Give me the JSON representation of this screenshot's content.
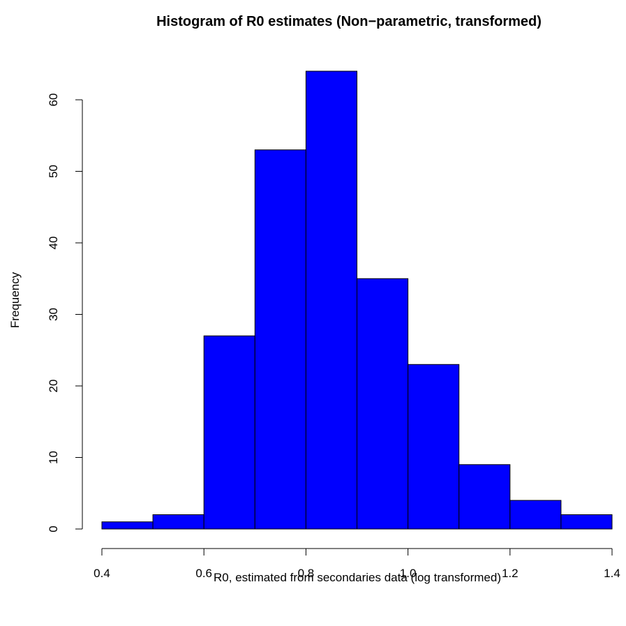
{
  "chart_data": {
    "type": "bar",
    "subtype": "histogram",
    "title": "Histogram of R0 estimates (Non−parametric, transformed)",
    "xlabel": "R0, estimated from secondaries data (log transformed)",
    "ylabel": "Frequency",
    "bins": [
      {
        "x0": 0.4,
        "x1": 0.5,
        "value": 1
      },
      {
        "x0": 0.5,
        "x1": 0.6,
        "value": 2
      },
      {
        "x0": 0.6,
        "x1": 0.7,
        "value": 27
      },
      {
        "x0": 0.7,
        "x1": 0.8,
        "value": 53
      },
      {
        "x0": 0.8,
        "x1": 0.9,
        "value": 64
      },
      {
        "x0": 0.9,
        "x1": 1.0,
        "value": 35
      },
      {
        "x0": 1.0,
        "x1": 1.1,
        "value": 23
      },
      {
        "x0": 1.1,
        "x1": 1.2,
        "value": 9
      },
      {
        "x0": 1.2,
        "x1": 1.3,
        "value": 4
      },
      {
        "x0": 1.3,
        "x1": 1.4,
        "value": 2
      }
    ],
    "xlim": [
      0.4,
      1.4
    ],
    "ylim": [
      0,
      64
    ],
    "xticks": [
      "0.4",
      "0.6",
      "0.8",
      "1.0",
      "1.2",
      "1.4"
    ],
    "yticks": [
      "0",
      "10",
      "20",
      "30",
      "40",
      "50",
      "60"
    ],
    "bar_color": "#0000ff",
    "grid": false,
    "legend": "none"
  }
}
